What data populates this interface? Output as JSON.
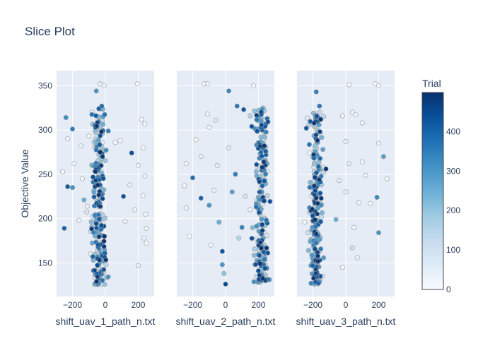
{
  "chart_data": {
    "type": "scatter",
    "title": "Slice Plot",
    "ylabel": "Objective Value",
    "ylim": [
      112,
      367
    ],
    "y_ticks": [
      150,
      200,
      250,
      300,
      350
    ],
    "colorbar": {
      "title": "Trial",
      "ticks": [
        0,
        100,
        200,
        300,
        400
      ],
      "range": [
        0,
        499
      ],
      "colorscale": [
        "#f7fbff",
        "#deebf7",
        "#c6dbef",
        "#9ecae1",
        "#6baed6",
        "#4292c6",
        "#2171b5",
        "#08519c",
        "#08306b"
      ]
    },
    "panels": [
      {
        "xlabel": "shift_uav_1_path_n.txt",
        "xlim": [
          -297,
          297
        ],
        "x_ticks": [
          -200,
          0,
          200
        ],
        "points": [
          {
            "x": 196,
            "y": 352,
            "trial": 5
          },
          {
            "x": -32,
            "y": 352,
            "trial": 40
          },
          {
            "x": -8,
            "y": 350,
            "trial": 20
          },
          {
            "x": -55,
            "y": 344,
            "trial": 300
          },
          {
            "x": -22,
            "y": 327,
            "trial": 380
          },
          {
            "x": -240,
            "y": 314,
            "trial": 320
          },
          {
            "x": -200,
            "y": 301,
            "trial": 350
          },
          {
            "x": -250,
            "y": 189,
            "trial": 400
          },
          {
            "x": -230,
            "y": 236,
            "trial": 420
          },
          {
            "x": -200,
            "y": 235,
            "trial": 310
          },
          {
            "x": -130,
            "y": 221,
            "trial": 250
          },
          {
            "x": -150,
            "y": 282,
            "trial": 30
          },
          {
            "x": -100,
            "y": 293,
            "trial": 20
          },
          {
            "x": 160,
            "y": 274,
            "trial": 440
          },
          {
            "x": 110,
            "y": 225,
            "trial": 430
          },
          {
            "x": 220,
            "y": 312,
            "trial": 10
          },
          {
            "x": 240,
            "y": 307,
            "trial": 15
          },
          {
            "x": 230,
            "y": 280,
            "trial": 12
          },
          {
            "x": 200,
            "y": 260,
            "trial": 18
          },
          {
            "x": 240,
            "y": 248,
            "trial": 25
          },
          {
            "x": 230,
            "y": 226,
            "trial": 8
          },
          {
            "x": 245,
            "y": 205,
            "trial": 14
          },
          {
            "x": 250,
            "y": 189,
            "trial": 22
          },
          {
            "x": 235,
            "y": 178,
            "trial": 30
          },
          {
            "x": 250,
            "y": 172,
            "trial": 6
          },
          {
            "x": 200,
            "y": 147,
            "trial": 40
          },
          {
            "x": 180,
            "y": 210,
            "trial": 20
          },
          {
            "x": 150,
            "y": 238,
            "trial": 35
          },
          {
            "x": 120,
            "y": 197,
            "trial": 28
          },
          {
            "x": 90,
            "y": 288,
            "trial": 16
          },
          {
            "x": 60,
            "y": 286,
            "trial": 9
          },
          {
            "x": -260,
            "y": 253,
            "trial": 12
          },
          {
            "x": -230,
            "y": 290,
            "trial": 10
          },
          {
            "x": -190,
            "y": 262,
            "trial": 18
          },
          {
            "x": -160,
            "y": 198,
            "trial": 26
          },
          {
            "x": -140,
            "y": 245,
            "trial": 14
          },
          {
            "x": -110,
            "y": 214,
            "trial": 30
          },
          {
            "x": -90,
            "y": 160,
            "trial": 45
          },
          {
            "x": -80,
            "y": 320,
            "trial": 12
          }
        ],
        "cluster": {
          "x_center": -40,
          "x_spread": 50,
          "y_min": 125,
          "y_max": 325,
          "count": 240
        }
      },
      {
        "xlabel": "shift_uav_2_path_n.txt",
        "xlim": [
          -297,
          297
        ],
        "x_ticks": [
          -200,
          0,
          200
        ],
        "points": [
          {
            "x": -130,
            "y": 352,
            "trial": 10
          },
          {
            "x": -110,
            "y": 352,
            "trial": 15
          },
          {
            "x": 170,
            "y": 350,
            "trial": 8
          },
          {
            "x": 20,
            "y": 344,
            "trial": 330
          },
          {
            "x": 70,
            "y": 327,
            "trial": 360
          },
          {
            "x": 110,
            "y": 323,
            "trial": 420
          },
          {
            "x": -110,
            "y": 318,
            "trial": 20
          },
          {
            "x": 150,
            "y": 316,
            "trial": 150
          },
          {
            "x": -60,
            "y": 311,
            "trial": 60
          },
          {
            "x": -100,
            "y": 303,
            "trial": 30
          },
          {
            "x": -180,
            "y": 289,
            "trial": 15
          },
          {
            "x": -240,
            "y": 262,
            "trial": 12
          },
          {
            "x": -200,
            "y": 246,
            "trial": 380
          },
          {
            "x": -150,
            "y": 223,
            "trial": 400
          },
          {
            "x": -100,
            "y": 215,
            "trial": 300
          },
          {
            "x": -240,
            "y": 212,
            "trial": 18
          },
          {
            "x": -220,
            "y": 180,
            "trial": 10
          },
          {
            "x": -90,
            "y": 170,
            "trial": 20
          },
          {
            "x": -40,
            "y": 196,
            "trial": 250
          },
          {
            "x": -20,
            "y": 163,
            "trial": 430
          },
          {
            "x": -20,
            "y": 148,
            "trial": 300
          },
          {
            "x": -10,
            "y": 138,
            "trial": 200
          },
          {
            "x": 0,
            "y": 126,
            "trial": 450
          },
          {
            "x": 40,
            "y": 230,
            "trial": 280
          },
          {
            "x": 100,
            "y": 190,
            "trial": 340
          },
          {
            "x": 80,
            "y": 178,
            "trial": 150
          },
          {
            "x": 150,
            "y": 210,
            "trial": 25
          },
          {
            "x": 60,
            "y": 250,
            "trial": 350
          },
          {
            "x": -50,
            "y": 260,
            "trial": 50
          },
          {
            "x": -150,
            "y": 270,
            "trial": 40
          },
          {
            "x": 120,
            "y": 225,
            "trial": 90
          },
          {
            "x": -70,
            "y": 232,
            "trial": 30
          },
          {
            "x": 20,
            "y": 280,
            "trial": 70
          },
          {
            "x": -250,
            "y": 237,
            "trial": 16
          }
        ],
        "cluster": {
          "x_center": 220,
          "x_spread": 50,
          "y_min": 128,
          "y_max": 325,
          "count": 240
        }
      },
      {
        "xlabel": "shift_uav_3_path_n.txt",
        "xlim": [
          -297,
          297
        ],
        "x_ticks": [
          -200,
          0,
          200
        ],
        "points": [
          {
            "x": 20,
            "y": 351,
            "trial": 10
          },
          {
            "x": 180,
            "y": 352,
            "trial": 8
          },
          {
            "x": 200,
            "y": 350,
            "trial": 12
          },
          {
            "x": -180,
            "y": 343,
            "trial": 340
          },
          {
            "x": -160,
            "y": 327,
            "trial": 360
          },
          {
            "x": 40,
            "y": 320,
            "trial": 15
          },
          {
            "x": 60,
            "y": 317,
            "trial": 20
          },
          {
            "x": -20,
            "y": 316,
            "trial": 18
          },
          {
            "x": 100,
            "y": 308,
            "trial": 30
          },
          {
            "x": -240,
            "y": 302,
            "trial": 420
          },
          {
            "x": 200,
            "y": 285,
            "trial": 25
          },
          {
            "x": 230,
            "y": 270,
            "trial": 280
          },
          {
            "x": 250,
            "y": 245,
            "trial": 10
          },
          {
            "x": 190,
            "y": 224,
            "trial": 330
          },
          {
            "x": 150,
            "y": 217,
            "trial": 15
          },
          {
            "x": 80,
            "y": 218,
            "trial": 20
          },
          {
            "x": 50,
            "y": 190,
            "trial": 30
          },
          {
            "x": 40,
            "y": 167,
            "trial": 100
          },
          {
            "x": 70,
            "y": 156,
            "trial": 25
          },
          {
            "x": 200,
            "y": 184,
            "trial": 300
          },
          {
            "x": 0,
            "y": 230,
            "trial": 40
          },
          {
            "x": 20,
            "y": 262,
            "trial": 60
          },
          {
            "x": -20,
            "y": 145,
            "trial": 10
          },
          {
            "x": -60,
            "y": 199,
            "trial": 250
          },
          {
            "x": -250,
            "y": 196,
            "trial": 12
          },
          {
            "x": -220,
            "y": 274,
            "trial": 18
          },
          {
            "x": 120,
            "y": 249,
            "trial": 22
          },
          {
            "x": 0,
            "y": 287,
            "trial": 35
          },
          {
            "x": 100,
            "y": 264,
            "trial": 14
          },
          {
            "x": -40,
            "y": 243,
            "trial": 50
          }
        ],
        "cluster": {
          "x_center": -180,
          "x_spread": 45,
          "y_min": 126,
          "y_max": 320,
          "count": 240
        }
      }
    ]
  }
}
